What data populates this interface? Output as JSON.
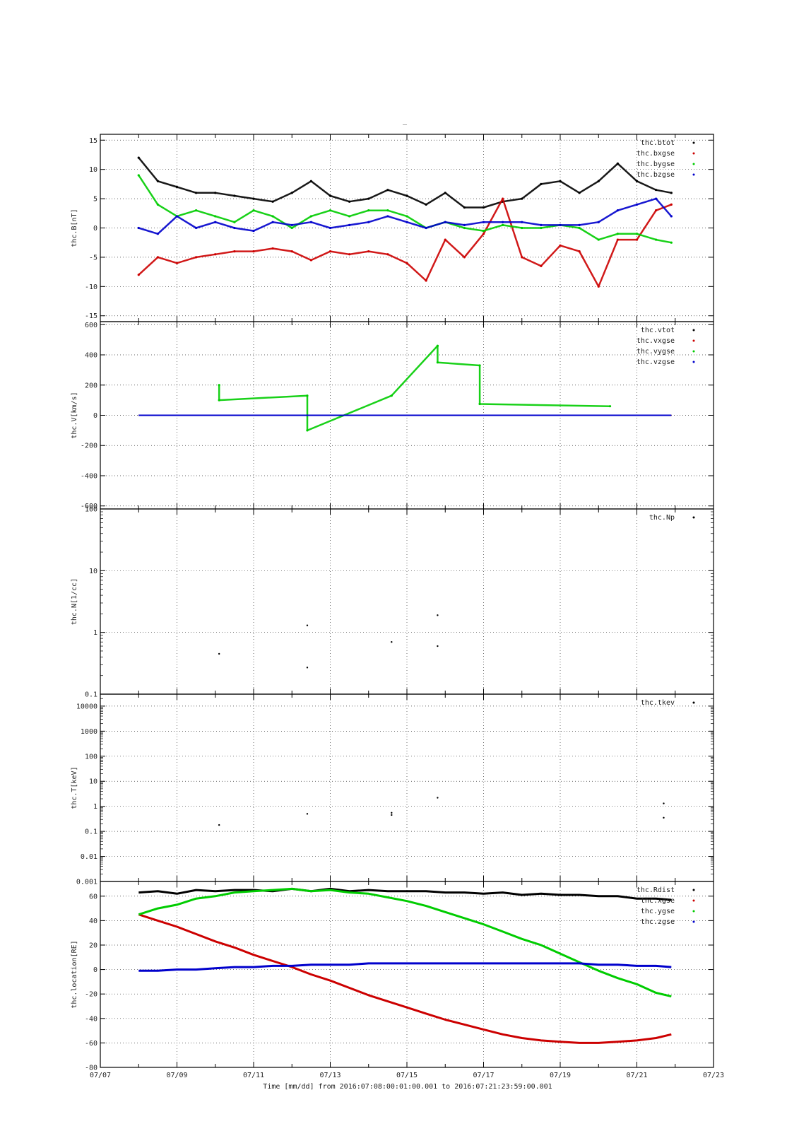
{
  "title": "_",
  "x_axis": {
    "label": "Time [mm/dd]  from 2016:07:08:00:01:00.001  to  2016:07:21:23:59:00.001",
    "range_days": [
      7,
      23
    ],
    "tick_labels": [
      "07/07",
      "07/09",
      "07/11",
      "07/13",
      "07/15",
      "07/17",
      "07/19",
      "07/21",
      "07/23"
    ],
    "grid": true
  },
  "chart_data": [
    {
      "type": "scatter",
      "ylabel": "thc.B[nT]",
      "ylim": [
        -16,
        16
      ],
      "ytick_values": [
        -15,
        -10,
        -5,
        0,
        5,
        10,
        15
      ],
      "ytick_labels": [
        "-15",
        "-10",
        "-5",
        "0",
        "5",
        "10",
        "15"
      ],
      "legend_position": "top-right",
      "series": [
        {
          "name": "thc.btot",
          "color": "#000000",
          "x": [
            8.0,
            8.5,
            9.0,
            9.5,
            10.0,
            10.5,
            11.0,
            11.5,
            12.0,
            12.5,
            13.0,
            13.5,
            14.0,
            14.5,
            15.0,
            15.5,
            16.0,
            16.5,
            17.0,
            17.5,
            18.0,
            18.5,
            19.0,
            19.5,
            20.0,
            20.5,
            21.0,
            21.5,
            21.9
          ],
          "y": [
            12.0,
            8.0,
            7.0,
            6.0,
            6.0,
            5.5,
            5.0,
            4.5,
            6.0,
            8.0,
            5.5,
            4.5,
            5.0,
            6.5,
            5.5,
            4.0,
            6.0,
            3.5,
            3.5,
            4.5,
            5.0,
            7.5,
            8.0,
            6.0,
            8.0,
            11.0,
            8.0,
            6.5,
            6.0
          ]
        },
        {
          "name": "thc.bxgse",
          "color": "#cc0000",
          "x": [
            8.0,
            8.5,
            9.0,
            9.5,
            10.0,
            10.5,
            11.0,
            11.5,
            12.0,
            12.5,
            13.0,
            13.5,
            14.0,
            14.5,
            15.0,
            15.5,
            16.0,
            16.5,
            17.0,
            17.5,
            18.0,
            18.5,
            19.0,
            19.5,
            20.0,
            20.5,
            21.0,
            21.5,
            21.9
          ],
          "y": [
            -8.0,
            -5.0,
            -6.0,
            -5.0,
            -4.5,
            -4.0,
            -4.0,
            -3.5,
            -4.0,
            -5.5,
            -4.0,
            -4.5,
            -4.0,
            -4.5,
            -6.0,
            -9.0,
            -2.0,
            -5.0,
            -1.0,
            5.0,
            -5.0,
            -6.5,
            -3.0,
            -4.0,
            -10.0,
            -2.0,
            -2.0,
            3.0,
            4.0
          ]
        },
        {
          "name": "thc.bygse",
          "color": "#00cc00",
          "x": [
            8.0,
            8.5,
            9.0,
            9.5,
            10.0,
            10.5,
            11.0,
            11.5,
            12.0,
            12.5,
            13.0,
            13.5,
            14.0,
            14.5,
            15.0,
            15.5,
            16.0,
            16.5,
            17.0,
            17.5,
            18.0,
            18.5,
            19.0,
            19.5,
            20.0,
            20.5,
            21.0,
            21.5,
            21.9
          ],
          "y": [
            9.0,
            4.0,
            2.0,
            3.0,
            2.0,
            1.0,
            3.0,
            2.0,
            0.0,
            2.0,
            3.0,
            2.0,
            3.0,
            3.0,
            2.0,
            0.0,
            1.0,
            0.0,
            -0.5,
            0.5,
            0.0,
            0.0,
            0.5,
            0.0,
            -2.0,
            -1.0,
            -1.0,
            -2.0,
            -2.5
          ]
        },
        {
          "name": "thc.bzgse",
          "color": "#0000cc",
          "x": [
            8.0,
            8.5,
            9.0,
            9.5,
            10.0,
            10.5,
            11.0,
            11.5,
            12.0,
            12.5,
            13.0,
            13.5,
            14.0,
            14.5,
            15.0,
            15.5,
            16.0,
            16.5,
            17.0,
            17.5,
            18.0,
            18.5,
            19.0,
            19.5,
            20.0,
            20.5,
            21.0,
            21.5,
            21.9
          ],
          "y": [
            0.0,
            -1.0,
            2.0,
            0.0,
            1.0,
            0.0,
            -0.5,
            1.0,
            0.5,
            1.0,
            0.0,
            0.5,
            1.0,
            2.0,
            1.0,
            0.0,
            1.0,
            0.5,
            1.0,
            1.0,
            1.0,
            0.5,
            0.5,
            0.5,
            1.0,
            3.0,
            4.0,
            5.0,
            2.0
          ]
        }
      ]
    },
    {
      "type": "scatter",
      "ylabel": "thc.V[km/s]",
      "ylim": [
        -620,
        620
      ],
      "ytick_values": [
        -600,
        -400,
        -200,
        0,
        200,
        400,
        600
      ],
      "ytick_labels": [
        "-600",
        "-400",
        "-200",
        "0",
        "200",
        "400",
        "600"
      ],
      "legend_position": "top-right",
      "series": [
        {
          "name": "thc.vtot",
          "color": "#000000",
          "x": [
            8.0,
            19.8,
            20.3,
            21.9
          ],
          "y": [
            0,
            0,
            0,
            0
          ]
        },
        {
          "name": "thc.vxgse",
          "color": "#cc0000",
          "x": [
            8.0,
            19.8,
            20.3,
            21.9
          ],
          "y": [
            0,
            0,
            0,
            0
          ]
        },
        {
          "name": "thc.vygse",
          "color": "#00cc00",
          "x": [
            10.1,
            10.1,
            12.4,
            12.4,
            14.6,
            15.8,
            15.8,
            16.9,
            16.9,
            20.3
          ],
          "y": [
            200,
            100,
            130,
            -100,
            130,
            460,
            350,
            330,
            75,
            60
          ]
        },
        {
          "name": "thc.vzgse",
          "color": "#0000cc",
          "x": [
            8.0,
            19.8,
            20.3,
            21.9
          ],
          "y": [
            0,
            0,
            0,
            0
          ]
        }
      ]
    },
    {
      "type": "scatter",
      "ylabel": "thc.N[1/cc]",
      "yscale": "log",
      "ylim": [
        0.1,
        100
      ],
      "ytick_values": [
        0.1,
        1,
        10,
        100
      ],
      "ytick_labels": [
        "0.1",
        "1",
        "10",
        "100"
      ],
      "legend_position": "top-right",
      "series": [
        {
          "name": "thc.Np",
          "color": "#000000",
          "x": [
            10.1,
            12.4,
            12.4,
            14.6,
            15.8,
            15.8
          ],
          "y": [
            0.45,
            1.3,
            0.27,
            0.7,
            1.9,
            0.6
          ]
        }
      ]
    },
    {
      "type": "scatter",
      "ylabel": "thc.T[keV]",
      "yscale": "log",
      "ylim": [
        0.001,
        30000
      ],
      "ytick_values": [
        0.001,
        0.01,
        0.1,
        1,
        10,
        100,
        1000,
        10000
      ],
      "ytick_labels": [
        "0.001",
        "0.01",
        "0.1",
        "1",
        "10",
        "100",
        "1000",
        "10000"
      ],
      "legend_position": "top-right",
      "series": [
        {
          "name": "thc.tkev",
          "color": "#000000",
          "x": [
            10.1,
            12.4,
            14.6,
            14.6,
            15.8,
            21.7,
            21.7
          ],
          "y": [
            0.18,
            0.5,
            0.55,
            0.45,
            2.2,
            0.35,
            1.3
          ]
        }
      ]
    },
    {
      "type": "line",
      "ylabel": "thc.location[RE]",
      "ylim": [
        -80,
        72
      ],
      "ytick_values": [
        -80,
        -60,
        -40,
        -20,
        0,
        20,
        40,
        60
      ],
      "ytick_labels": [
        "-80",
        "-60",
        "-40",
        "-20",
        "0",
        "20",
        "40",
        "60"
      ],
      "legend_position": "top-right",
      "series": [
        {
          "name": "thc.Rdist",
          "color": "#000000",
          "x": [
            8.0,
            8.5,
            9.0,
            9.5,
            10.0,
            10.5,
            11.0,
            11.5,
            12.0,
            12.5,
            13.0,
            13.5,
            14.0,
            14.5,
            15.0,
            15.5,
            16.0,
            16.5,
            17.0,
            17.5,
            18.0,
            18.5,
            19.0,
            19.5,
            20.0,
            20.5,
            21.0,
            21.5,
            21.9
          ],
          "y": [
            63,
            64,
            62,
            65,
            64,
            65,
            65,
            64,
            66,
            64,
            66,
            64,
            65,
            64,
            64,
            64,
            63,
            63,
            62,
            63,
            61,
            62,
            61,
            61,
            60,
            60,
            58,
            58,
            57
          ]
        },
        {
          "name": "thc.xgse",
          "color": "#cc0000",
          "x": [
            8.0,
            8.5,
            9.0,
            9.5,
            10.0,
            10.5,
            11.0,
            11.5,
            12.0,
            12.5,
            13.0,
            13.5,
            14.0,
            14.5,
            15.0,
            15.5,
            16.0,
            16.5,
            17.0,
            17.5,
            18.0,
            18.5,
            19.0,
            19.5,
            20.0,
            20.5,
            21.0,
            21.5,
            21.9
          ],
          "y": [
            45,
            40,
            35,
            29,
            23,
            18,
            12,
            7,
            2,
            -4,
            -9,
            -15,
            -21,
            -26,
            -31,
            -36,
            -41,
            -45,
            -49,
            -53,
            -56,
            -58,
            -59,
            -60,
            -60,
            -59,
            -58,
            -56,
            -53
          ]
        },
        {
          "name": "thc.ygse",
          "color": "#00cc00",
          "x": [
            8.0,
            8.5,
            9.0,
            9.5,
            10.0,
            10.5,
            11.0,
            11.5,
            12.0,
            12.5,
            13.0,
            13.5,
            14.0,
            14.5,
            15.0,
            15.5,
            16.0,
            16.5,
            17.0,
            17.5,
            18.0,
            18.5,
            19.0,
            19.5,
            20.0,
            20.5,
            21.0,
            21.5,
            21.9
          ],
          "y": [
            45,
            50,
            53,
            58,
            60,
            63,
            64,
            65,
            66,
            64,
            65,
            63,
            62,
            59,
            56,
            52,
            47,
            42,
            37,
            31,
            25,
            20,
            13,
            6,
            -1,
            -7,
            -12,
            -19,
            -22
          ]
        },
        {
          "name": "thc.zgse",
          "color": "#0000cc",
          "x": [
            8.0,
            8.5,
            9.0,
            9.5,
            10.0,
            10.5,
            11.0,
            11.5,
            12.0,
            12.5,
            13.0,
            13.5,
            14.0,
            14.5,
            15.0,
            15.5,
            16.0,
            16.5,
            17.0,
            17.5,
            18.0,
            18.5,
            19.0,
            19.5,
            20.0,
            20.5,
            21.0,
            21.5,
            21.9
          ],
          "y": [
            -1,
            -1,
            0,
            0,
            1,
            2,
            2,
            3,
            3,
            4,
            4,
            4,
            5,
            5,
            5,
            5,
            5,
            5,
            5,
            5,
            5,
            5,
            5,
            5,
            4,
            4,
            3,
            3,
            2
          ]
        }
      ]
    }
  ]
}
